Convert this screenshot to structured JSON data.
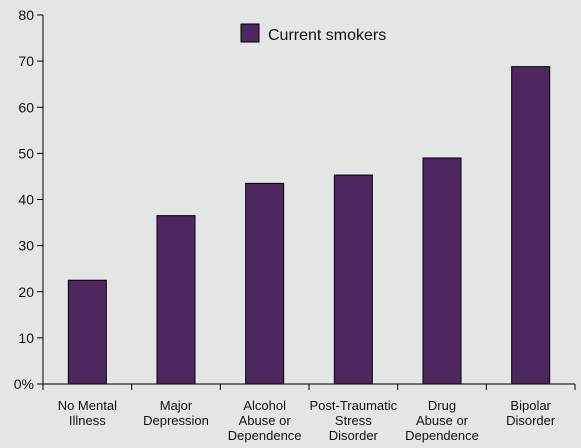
{
  "chart_data": {
    "type": "bar",
    "categories": [
      [
        "No Mental",
        "Illness"
      ],
      [
        "Major",
        "Depression"
      ],
      [
        "Alcohol",
        "Abuse or",
        "Dependence"
      ],
      [
        "Post-Traumatic",
        "Stress",
        "Disorder"
      ],
      [
        "Drug",
        "Abuse or",
        "Dependence"
      ],
      [
        "Bipolar",
        "Disorder"
      ]
    ],
    "series": [
      {
        "name": "Current smokers",
        "values": [
          22.5,
          36.5,
          43.5,
          45.3,
          49,
          68.8
        ],
        "color": "#4e2760"
      }
    ],
    "yticks": [
      "0%",
      "10",
      "20",
      "30",
      "40",
      "50",
      "60",
      "70",
      "80"
    ],
    "ylim": [
      0,
      80
    ],
    "grid": false,
    "legend_position": "top-right",
    "background": "#e4e5e5"
  }
}
